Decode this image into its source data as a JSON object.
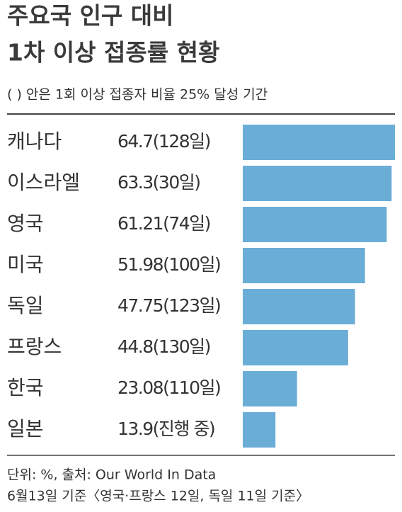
{
  "chart_data": {
    "type": "bar",
    "orientation": "horizontal",
    "title": [
      "주요국 인구 대비",
      "1차 이상 접종률 현황"
    ],
    "subtitle": "(   ) 안은 1회 이상 접종자 비율 25% 달성 기간",
    "categories": [
      "캐나다",
      "이스라엘",
      "영국",
      "미국",
      "독일",
      "프랑스",
      "한국",
      "일본"
    ],
    "values": [
      64.7,
      63.3,
      61.21,
      51.98,
      47.75,
      44.8,
      23.08,
      13.9
    ],
    "value_labels": [
      "64.7(128일)",
      "63.3(30일)",
      "61.21(74일)",
      "51.98(100일)",
      "47.75(123일)",
      "44.8(130일)",
      "23.08(110일)",
      "13.9(진행 중)"
    ],
    "color": "#6aaed8",
    "notes": [
      "단위: %, 출처: Our World In Data",
      "6월13일 기준〈영국·프랑스 12일, 독일 11일 기준〉"
    ]
  }
}
